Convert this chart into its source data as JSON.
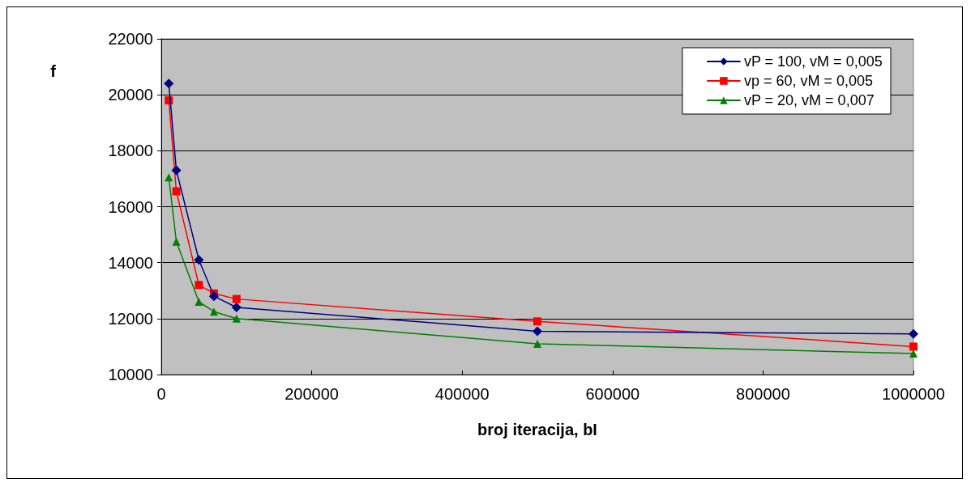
{
  "chart_data": {
    "type": "line",
    "xlabel": "broj iteracija, bI",
    "ylabel": "f",
    "x": [
      10000,
      20000,
      50000,
      70000,
      100000,
      500000,
      1000000
    ],
    "series": [
      {
        "name": "vP = 100, vM = 0,005",
        "color": "#000080",
        "marker": "diamond",
        "values": [
          20400,
          17300,
          14100,
          12800,
          12400,
          11550,
          11450
        ]
      },
      {
        "name": "vp = 60, vM = 0,005",
        "color": "#ff0000",
        "marker": "square",
        "values": [
          19800,
          16550,
          13200,
          12900,
          12700,
          11900,
          11000
        ]
      },
      {
        "name": "vP = 20, vM = 0,007",
        "color": "#008000",
        "marker": "triangle",
        "values": [
          17050,
          14750,
          12600,
          12250,
          12000,
          11100,
          10750
        ]
      }
    ],
    "xlim": [
      0,
      1000000
    ],
    "xticks": [
      0,
      200000,
      400000,
      600000,
      800000,
      1000000
    ],
    "ylim": [
      10000,
      22000
    ],
    "yticks": [
      10000,
      12000,
      14000,
      16000,
      18000,
      20000,
      22000
    ],
    "grid": "y",
    "legend": "top right",
    "line_style": "solid"
  }
}
